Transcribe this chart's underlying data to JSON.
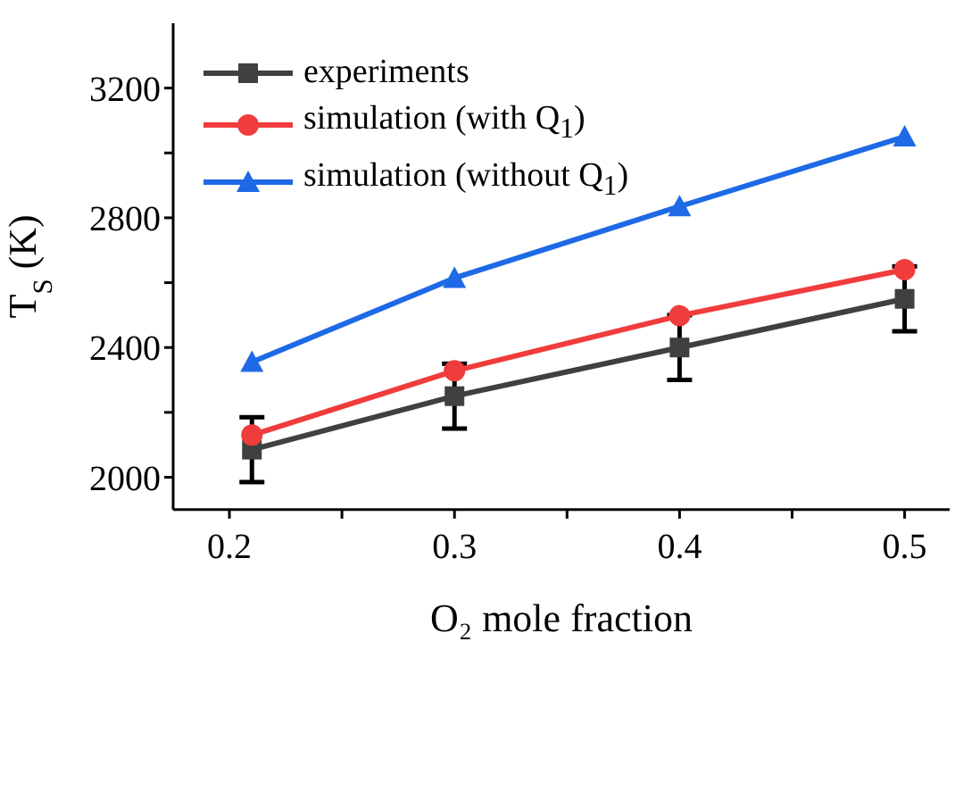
{
  "chart_data": {
    "type": "line",
    "xlabel": "O₂ mole fraction",
    "ylabel": "T$_{S}$ (K)",
    "x": [
      0.21,
      0.3,
      0.4,
      0.5
    ],
    "series": [
      {
        "name": "experiments",
        "color": "#404040",
        "marker": "square",
        "values": [
          2085,
          2250,
          2400,
          2550
        ],
        "errors": [
          100,
          100,
          100,
          100
        ]
      },
      {
        "name": "simulation (with Q$_{1}$)",
        "color": "#f03c3c",
        "marker": "circle",
        "values": [
          2130,
          2328,
          2498,
          2640
        ]
      },
      {
        "name": "simulation (without Q$_{1}$)",
        "color": "#1e6ae6",
        "marker": "triangle",
        "values": [
          2355,
          2614,
          2835,
          3050
        ]
      }
    ],
    "xlim": [
      0.175,
      0.52
    ],
    "xticks": [
      0.2,
      {
        "value": 0.25,
        "label": null
      },
      0.3,
      {
        "value": 0.35,
        "label": null
      },
      0.4,
      {
        "value": 0.45,
        "label": null
      },
      0.5
    ],
    "ylim": [
      1900,
      3400
    ],
    "yticks": [
      2000,
      {
        "value": 2200,
        "label": null
      },
      2400,
      {
        "value": 2600,
        "label": null
      },
      2800,
      {
        "value": 3000,
        "label": null
      },
      3200
    ],
    "grid": false,
    "legend": "top left"
  }
}
